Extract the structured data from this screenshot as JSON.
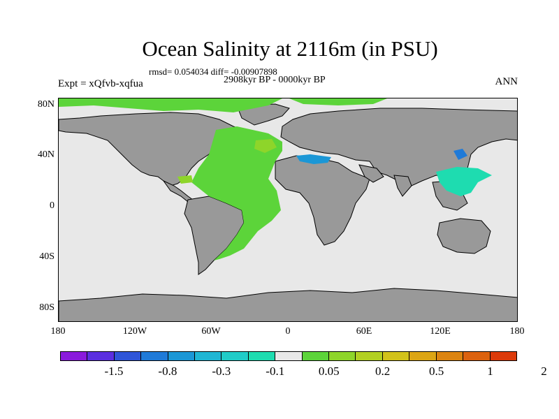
{
  "title": "Ocean Salinity at 2116m (in PSU)",
  "stats_line": "rmsd= 0.054034 diff= -0.00907898",
  "period": "2908kyr BP - 0000kyr BP",
  "experiment": "Expt = xQfvb-xqfua",
  "season": "ANN",
  "map": {
    "land_color": "#999999",
    "ocean_neutral_color": "#e8e8e8",
    "lat_labels": [
      "80N",
      "40N",
      "0",
      "40S",
      "80S"
    ],
    "lon_labels": [
      "180",
      "120W",
      "60W",
      "0",
      "60E",
      "120E",
      "180"
    ]
  },
  "colorbar": {
    "colors": [
      "#8a1adc",
      "#5b2fe0",
      "#2f55d8",
      "#1f7ad8",
      "#1b97d6",
      "#1fb6d4",
      "#20ccc8",
      "#1edcb0",
      "#e8e8e8",
      "#5cd43a",
      "#8ed52a",
      "#b2d022",
      "#d2c21a",
      "#dca514",
      "#dc8410",
      "#dc620e",
      "#dc3a0a"
    ],
    "labels": [
      "-1.5",
      "-0.8",
      "-0.3",
      "-0.1",
      "0.05",
      "0.2",
      "0.5",
      "1",
      "2"
    ]
  }
}
